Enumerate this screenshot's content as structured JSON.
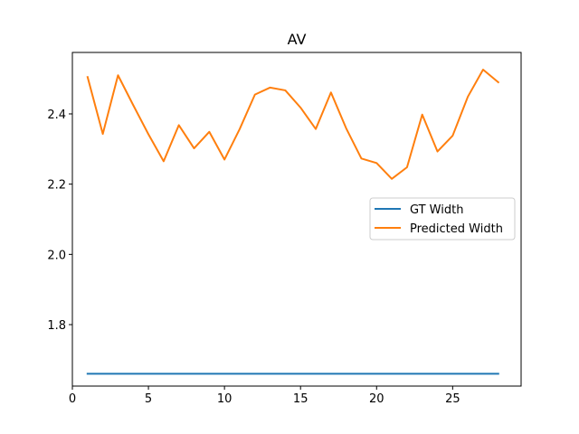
{
  "chart_data": {
    "type": "line",
    "title": "AV",
    "xlabel": "",
    "ylabel": "",
    "xlim": [
      0.0,
      29.5
    ],
    "ylim": [
      1.625,
      2.575
    ],
    "xticks": [
      0,
      5,
      10,
      15,
      20,
      25
    ],
    "yticks": [
      1.8,
      2.0,
      2.2,
      2.4
    ],
    "grid": false,
    "legend_position": "center-right",
    "x": [
      1,
      2,
      3,
      4,
      5,
      6,
      7,
      8,
      9,
      10,
      11,
      12,
      13,
      14,
      15,
      16,
      17,
      18,
      19,
      20,
      21,
      22,
      23,
      24,
      25,
      26,
      27,
      28
    ],
    "series": [
      {
        "name": "GT Width",
        "color": "#1f77b4",
        "values": [
          1.66,
          1.66,
          1.66,
          1.66,
          1.66,
          1.66,
          1.66,
          1.66,
          1.66,
          1.66,
          1.66,
          1.66,
          1.66,
          1.66,
          1.66,
          1.66,
          1.66,
          1.66,
          1.66,
          1.66,
          1.66,
          1.66,
          1.66,
          1.66,
          1.66,
          1.66,
          1.66,
          1.66
        ]
      },
      {
        "name": "Predicted Width",
        "color": "#ff7f0e",
        "values": [
          2.505,
          2.343,
          2.51,
          2.425,
          2.342,
          2.265,
          2.368,
          2.302,
          2.349,
          2.27,
          2.357,
          2.455,
          2.475,
          2.467,
          2.418,
          2.357,
          2.461,
          2.359,
          2.273,
          2.26,
          2.215,
          2.248,
          2.398,
          2.293,
          2.338,
          2.449,
          2.526,
          2.49
        ]
      }
    ]
  }
}
